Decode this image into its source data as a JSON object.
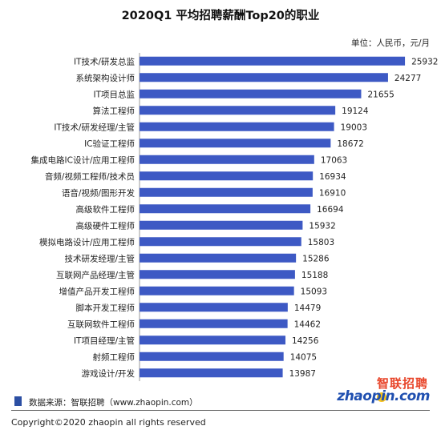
{
  "chart_data": {
    "type": "bar",
    "orientation": "horizontal",
    "title": "2020Q1 平均招聘薪酬Top20的职业",
    "unit": "单位：人民币，元/月",
    "categories": [
      "IT技术/研发总监",
      "系统架构设计师",
      "IT项目总监",
      "算法工程师",
      "IT技术/研发经理/主管",
      "IC验证工程师",
      "集成电路IC设计/应用工程师",
      "音频/视频工程师/技术员",
      "语音/视频/图形开发",
      "高级软件工程师",
      "高级硬件工程师",
      "模拟电路设计/应用工程师",
      "技术研发经理/主管",
      "互联网产品经理/主管",
      "增值产品开发工程师",
      "脚本开发工程师",
      "互联网软件工程师",
      "IT项目经理/主管",
      "射频工程师",
      "游戏设计/开发"
    ],
    "values": [
      25932,
      24277,
      21655,
      19124,
      19003,
      18672,
      17063,
      16934,
      16910,
      16694,
      15932,
      15803,
      15286,
      15188,
      15093,
      14479,
      14462,
      14256,
      14075,
      13987
    ],
    "xlim": [
      0,
      30000
    ],
    "grid": false,
    "legend": "none",
    "bar_color": "#3d59c4"
  },
  "footer": {
    "source": "数据来源：智联招聘（www.zhaopin.com）",
    "copyright": "Copyright©2020 zhaopin all rights reserved"
  },
  "logo": {
    "cn": "智联招聘",
    "en": "zhaopin.com"
  }
}
